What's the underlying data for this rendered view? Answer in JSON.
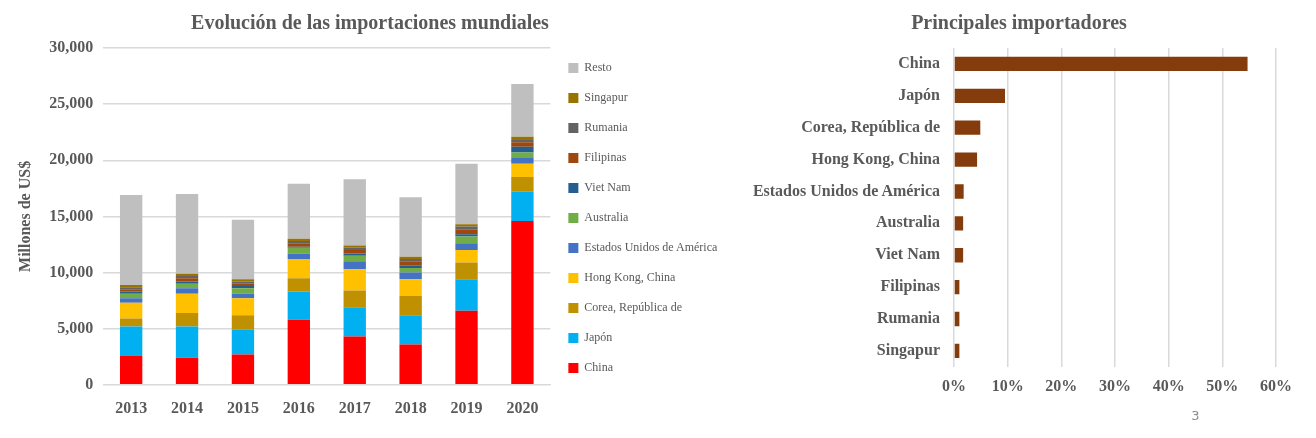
{
  "chart_data": [
    {
      "type": "bar",
      "title": "Evolución de las importaciones mundiales",
      "ylabel": "Millones de US$",
      "stacked": true,
      "legend": "right",
      "grid": "y",
      "categories": [
        "2013",
        "2014",
        "2015",
        "2016",
        "2017",
        "2018",
        "2019",
        "2020"
      ],
      "ylim": [
        0,
        30000
      ],
      "yticks": [
        {
          "value": 0,
          "label": "0"
        },
        {
          "value": 5000,
          "label": "5,000"
        },
        {
          "value": 10000,
          "label": "10,000"
        },
        {
          "value": 15000,
          "label": "15,000"
        },
        {
          "value": 20000,
          "label": "20,000"
        },
        {
          "value": 25000,
          "label": "25,000"
        },
        {
          "value": 30000,
          "label": "30,000"
        }
      ],
      "series": [
        {
          "name": "China",
          "color": "#ff0000",
          "values": [
            2600,
            2400,
            2700,
            5800,
            4300,
            3600,
            6600,
            14600
          ]
        },
        {
          "name": "Japón",
          "color": "#00b0f0",
          "values": [
            2600,
            2800,
            2200,
            2500,
            2600,
            2600,
            2800,
            2600
          ]
        },
        {
          "name": "Corea, República de",
          "color": "#bf9000",
          "values": [
            700,
            1200,
            1300,
            1200,
            1500,
            1700,
            1500,
            1300
          ]
        },
        {
          "name": "Hong Kong, China",
          "color": "#ffc000",
          "values": [
            1400,
            1700,
            1500,
            1700,
            1900,
            1500,
            1100,
            1200
          ]
        },
        {
          "name": "Estados Unidos de América",
          "color": "#4472c4",
          "values": [
            400,
            500,
            400,
            500,
            700,
            600,
            600,
            500
          ]
        },
        {
          "name": "Australia",
          "color": "#70ad47",
          "values": [
            400,
            400,
            500,
            500,
            500,
            400,
            600,
            500
          ]
        },
        {
          "name": "Viet Nam",
          "color": "#255e91",
          "values": [
            200,
            200,
            200,
            100,
            200,
            200,
            200,
            500
          ]
        },
        {
          "name": "Filipinas",
          "color": "#9e480e",
          "values": [
            200,
            300,
            200,
            300,
            300,
            400,
            400,
            400
          ]
        },
        {
          "name": "Rumania",
          "color": "#636363",
          "values": [
            200,
            200,
            200,
            200,
            200,
            200,
            300,
            200
          ]
        },
        {
          "name": "Singapur",
          "color": "#997300",
          "values": [
            200,
            200,
            200,
            200,
            200,
            200,
            200,
            300
          ]
        },
        {
          "name": "Resto",
          "color": "#bfbfbf",
          "values": [
            8000,
            7100,
            5300,
            4900,
            5900,
            5300,
            5400,
            4700
          ]
        }
      ]
    },
    {
      "type": "bar",
      "title": "Principales importadores",
      "orientation": "horizontal",
      "grid": "x",
      "categories": [
        "China",
        "Japón",
        "Corea, República de",
        "Hong Kong, China",
        "Estados Unidos de América",
        "Australia",
        "Viet Nam",
        "Filipinas",
        "Rumania",
        "Singapur"
      ],
      "values": [
        54.7,
        9.5,
        4.9,
        4.3,
        1.8,
        1.7,
        1.7,
        1.0,
        1.0,
        1.0
      ],
      "color": "#843c0c",
      "xlim": [
        0,
        60
      ],
      "xticks": [
        {
          "value": 0,
          "label": "0%"
        },
        {
          "value": 10,
          "label": "10%"
        },
        {
          "value": 20,
          "label": "20%"
        },
        {
          "value": 30,
          "label": "30%"
        },
        {
          "value": 40,
          "label": "40%"
        },
        {
          "value": 50,
          "label": "50%"
        },
        {
          "value": 60,
          "label": "60%"
        }
      ],
      "annotations": [
        "3"
      ]
    }
  ]
}
